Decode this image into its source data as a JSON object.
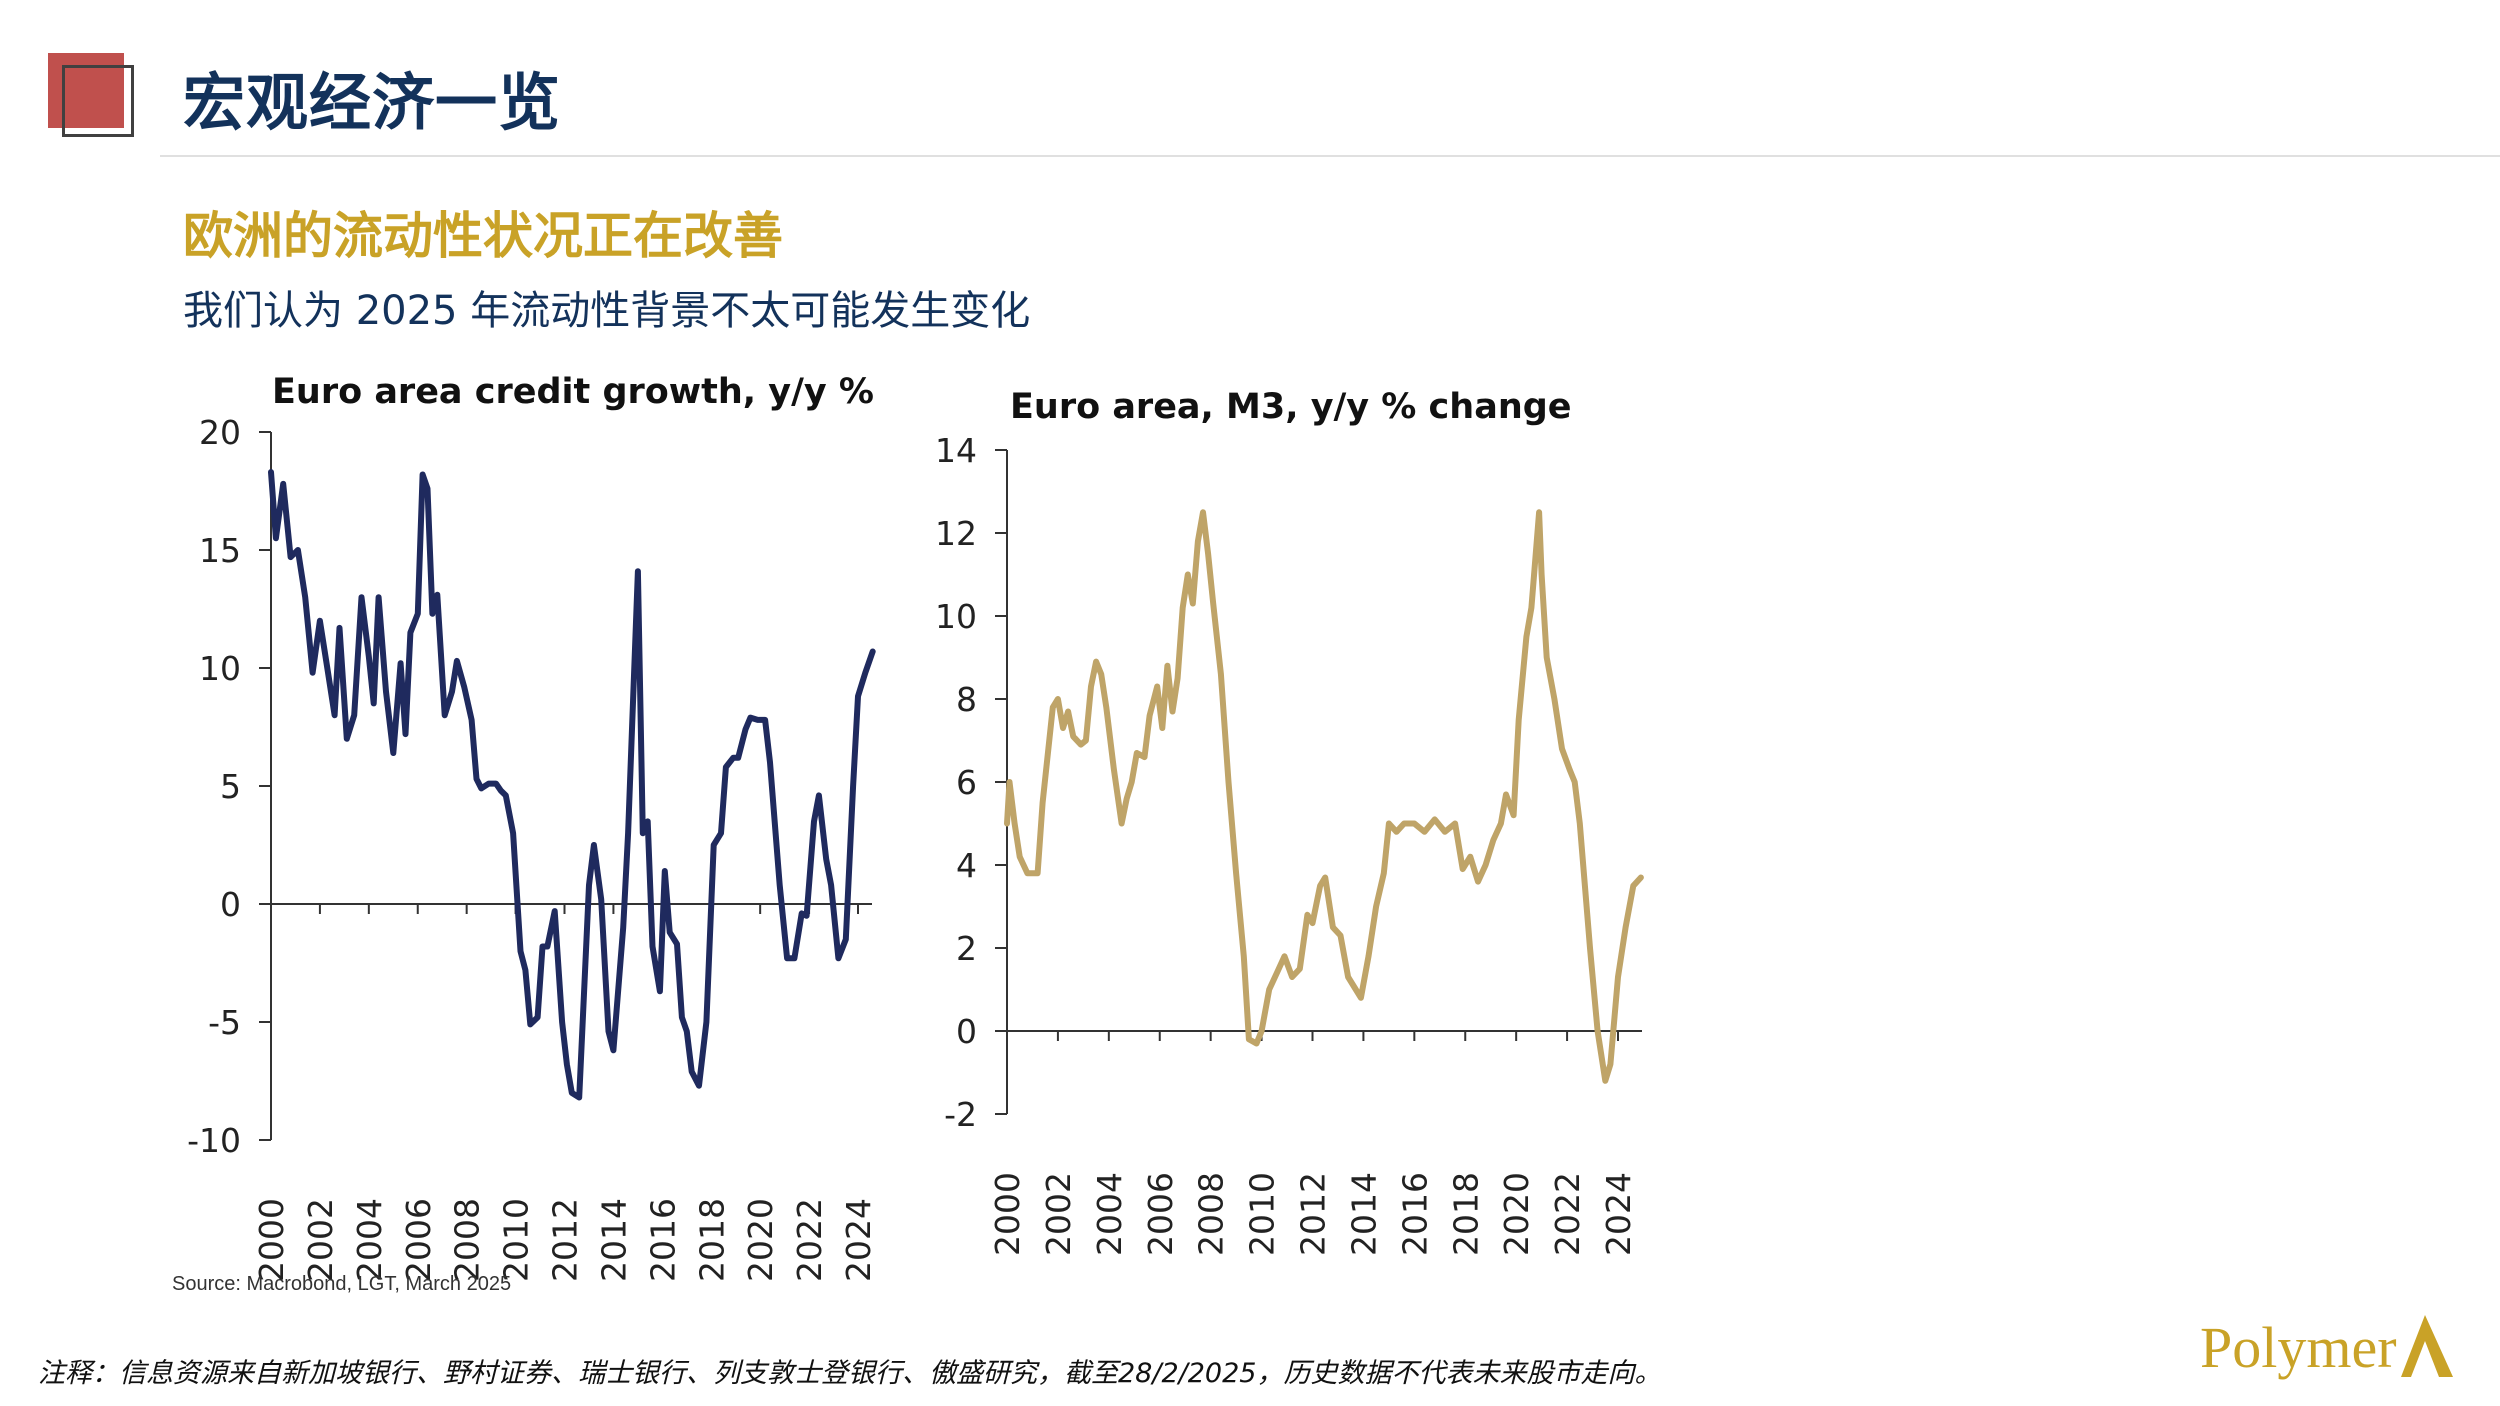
{
  "header": {
    "title": "宏观经济一览"
  },
  "section": {
    "heading": "欧洲的流动性状况正在改善",
    "subheading": "我们认为 2025 年流动性背景不太可能发生变化"
  },
  "source": "Source: Macrobond, LGT, March 2025",
  "footnote": "注释：信息资源来自新加坡银行、野村证券、瑞士银行、列支敦士登银行、傲盛研究，截至28/2/2025，历史数据不代表未来股市走向。",
  "logo": {
    "text": "Polymer",
    "mark": "A"
  },
  "colors": {
    "navy": "#13325b",
    "gold": "#c9a227",
    "credit_line": "#1f2a5e",
    "m3_line": "#bfa468",
    "accent_red": "#c0504d"
  },
  "chart_data": [
    {
      "type": "line",
      "title": "Euro area credit growth, y/y %",
      "xlabel": "",
      "ylabel": "",
      "ylim": [
        -10,
        20
      ],
      "yticks": [
        "20",
        "15",
        "10",
        "5",
        "0",
        "-5",
        "-10"
      ],
      "xticks": [
        "2000",
        "2002",
        "2004",
        "2006",
        "2008",
        "2010",
        "2012",
        "2014",
        "2016",
        "2018",
        "2020",
        "2022",
        "2024"
      ],
      "xlim": [
        2000,
        2024.7
      ],
      "series": [
        {
          "name": "Euro area credit growth",
          "color": "#1f2a5e",
          "x": [
            2000,
            2000.2,
            2000.5,
            2000.8,
            2001.1,
            2001.4,
            2001.7,
            2002,
            2002.3,
            2002.6,
            2002.8,
            2003.1,
            2003.4,
            2003.7,
            2004,
            2004.2,
            2004.4,
            2004.7,
            2005,
            2005.3,
            2005.5,
            2005.7,
            2006,
            2006.2,
            2006.4,
            2006.6,
            2006.8,
            2007.1,
            2007.4,
            2007.6,
            2007.9,
            2008.2,
            2008.4,
            2008.6,
            2008.9,
            2009.2,
            2009.4,
            2009.6,
            2009.9,
            2010.2,
            2010.4,
            2010.6,
            2010.9,
            2011.1,
            2011.3,
            2011.6,
            2011.9,
            2012.1,
            2012.3,
            2012.6,
            2013,
            2013.2,
            2013.5,
            2013.8,
            2014,
            2014.4,
            2014.6,
            2015,
            2015.2,
            2015.4,
            2015.6,
            2015.9,
            2016.1,
            2016.3,
            2016.6,
            2016.8,
            2017,
            2017.2,
            2017.5,
            2017.8,
            2018.1,
            2018.4,
            2018.6,
            2018.9,
            2019.1,
            2019.4,
            2019.6,
            2019.9,
            2020.2,
            2020.4,
            2020.8,
            2021.1,
            2021.4,
            2021.7,
            2021.9,
            2022.2,
            2022.4,
            2022.7,
            2022.9,
            2023.2,
            2023.5,
            2023.8,
            2024,
            2024.3,
            2024.6
          ],
          "y": [
            18.3,
            15.5,
            17.8,
            14.7,
            15,
            13,
            9.8,
            12,
            10,
            8,
            11.7,
            7,
            8,
            13,
            10.5,
            8.5,
            13,
            9,
            6.4,
            10.2,
            7.2,
            11.5,
            12.3,
            18.2,
            17.6,
            12.3,
            13.1,
            8,
            9,
            10.3,
            9.2,
            7.8,
            5.3,
            4.9,
            5.1,
            5.1,
            4.8,
            4.6,
            3,
            -2,
            -2.8,
            -5.1,
            -4.8,
            -1.8,
            -1.8,
            -0.3,
            -5,
            -6.8,
            -8,
            -8.2,
            0.8,
            2.5,
            0.2,
            -5.4,
            -6.2,
            -1,
            3,
            14.1,
            3,
            3.5,
            -1.8,
            -3.7,
            1.4,
            -1.2,
            -1.7,
            -4.8,
            -5.4,
            -7.1,
            -7.7,
            -5,
            2.5,
            3,
            5.8,
            6.2,
            6.2,
            7.4,
            7.9,
            7.8,
            7.8,
            6,
            0.8,
            -2.3,
            -2.3,
            -0.4,
            -0.5,
            3.5,
            4.6,
            1.9,
            0.8,
            -2.3,
            -1.5,
            5,
            8.8,
            9.8,
            10.7
          ]
        }
      ]
    },
    {
      "type": "line",
      "title": "Euro area, M3, y/y % change",
      "xlabel": "",
      "ylabel": "",
      "ylim": [
        -2,
        14
      ],
      "yticks": [
        "14",
        "12",
        "10",
        "8",
        "6",
        "4",
        "2",
        "0",
        "-2"
      ],
      "xticks": [
        "2000",
        "2002",
        "2004",
        "2006",
        "2008",
        "2010",
        "2012",
        "2014",
        "2016",
        "2018",
        "2020",
        "2022",
        "2024"
      ],
      "xlim": [
        2000,
        2025
      ],
      "series": [
        {
          "name": "Euro area M3",
          "color": "#bfa468",
          "x": [
            2000,
            2000.1,
            2000.3,
            2000.5,
            2000.8,
            2001.2,
            2001.4,
            2001.8,
            2002,
            2002.2,
            2002.4,
            2002.6,
            2002.9,
            2003.1,
            2003.3,
            2003.5,
            2003.7,
            2003.9,
            2004.2,
            2004.5,
            2004.7,
            2004.9,
            2005.1,
            2005.4,
            2005.6,
            2005.9,
            2006.1,
            2006.3,
            2006.5,
            2006.7,
            2006.9,
            2007.1,
            2007.3,
            2007.5,
            2007.7,
            2007.9,
            2008.1,
            2008.4,
            2008.7,
            2009,
            2009.3,
            2009.5,
            2009.8,
            2010,
            2010.3,
            2010.6,
            2010.9,
            2011.2,
            2011.5,
            2011.8,
            2012,
            2012.3,
            2012.5,
            2012.8,
            2013.1,
            2013.4,
            2013.7,
            2013.9,
            2014.2,
            2014.5,
            2014.8,
            2015,
            2015.3,
            2015.6,
            2016,
            2016.4,
            2016.8,
            2017.2,
            2017.6,
            2017.9,
            2018.2,
            2018.5,
            2018.8,
            2019.1,
            2019.4,
            2019.6,
            2019.9,
            2020.1,
            2020.4,
            2020.6,
            2020.9,
            2021,
            2021.2,
            2021.5,
            2021.8,
            2022.1,
            2022.3,
            2022.5,
            2022.9,
            2023.2,
            2023.5,
            2023.7,
            2024,
            2024.3,
            2024.6,
            2024.9
          ],
          "y": [
            5,
            6,
            5,
            4.2,
            3.8,
            3.8,
            5.5,
            7.8,
            8,
            7.3,
            7.7,
            7.1,
            6.9,
            7,
            8.3,
            8.9,
            8.6,
            7.8,
            6.3,
            5,
            5.6,
            6,
            6.7,
            6.6,
            7.6,
            8.3,
            7.3,
            8.8,
            7.7,
            8.5,
            10.2,
            11,
            10.3,
            11.8,
            12.5,
            11.5,
            10.3,
            8.6,
            6,
            3.8,
            1.8,
            -0.2,
            -0.3,
            0,
            1,
            1.4,
            1.8,
            1.3,
            1.5,
            2.8,
            2.6,
            3.5,
            3.7,
            2.5,
            2.3,
            1.3,
            1,
            0.8,
            1.8,
            3,
            3.8,
            5,
            4.8,
            5,
            5,
            4.8,
            5.1,
            4.8,
            5,
            3.9,
            4.2,
            3.6,
            4,
            4.6,
            5,
            5.7,
            5.2,
            7.5,
            9.5,
            10.2,
            12.5,
            11,
            9,
            8,
            6.8,
            6.3,
            6,
            5,
            2,
            0,
            -1.2,
            -0.8,
            1.3,
            2.5,
            3.5,
            3.7
          ]
        }
      ]
    }
  ]
}
